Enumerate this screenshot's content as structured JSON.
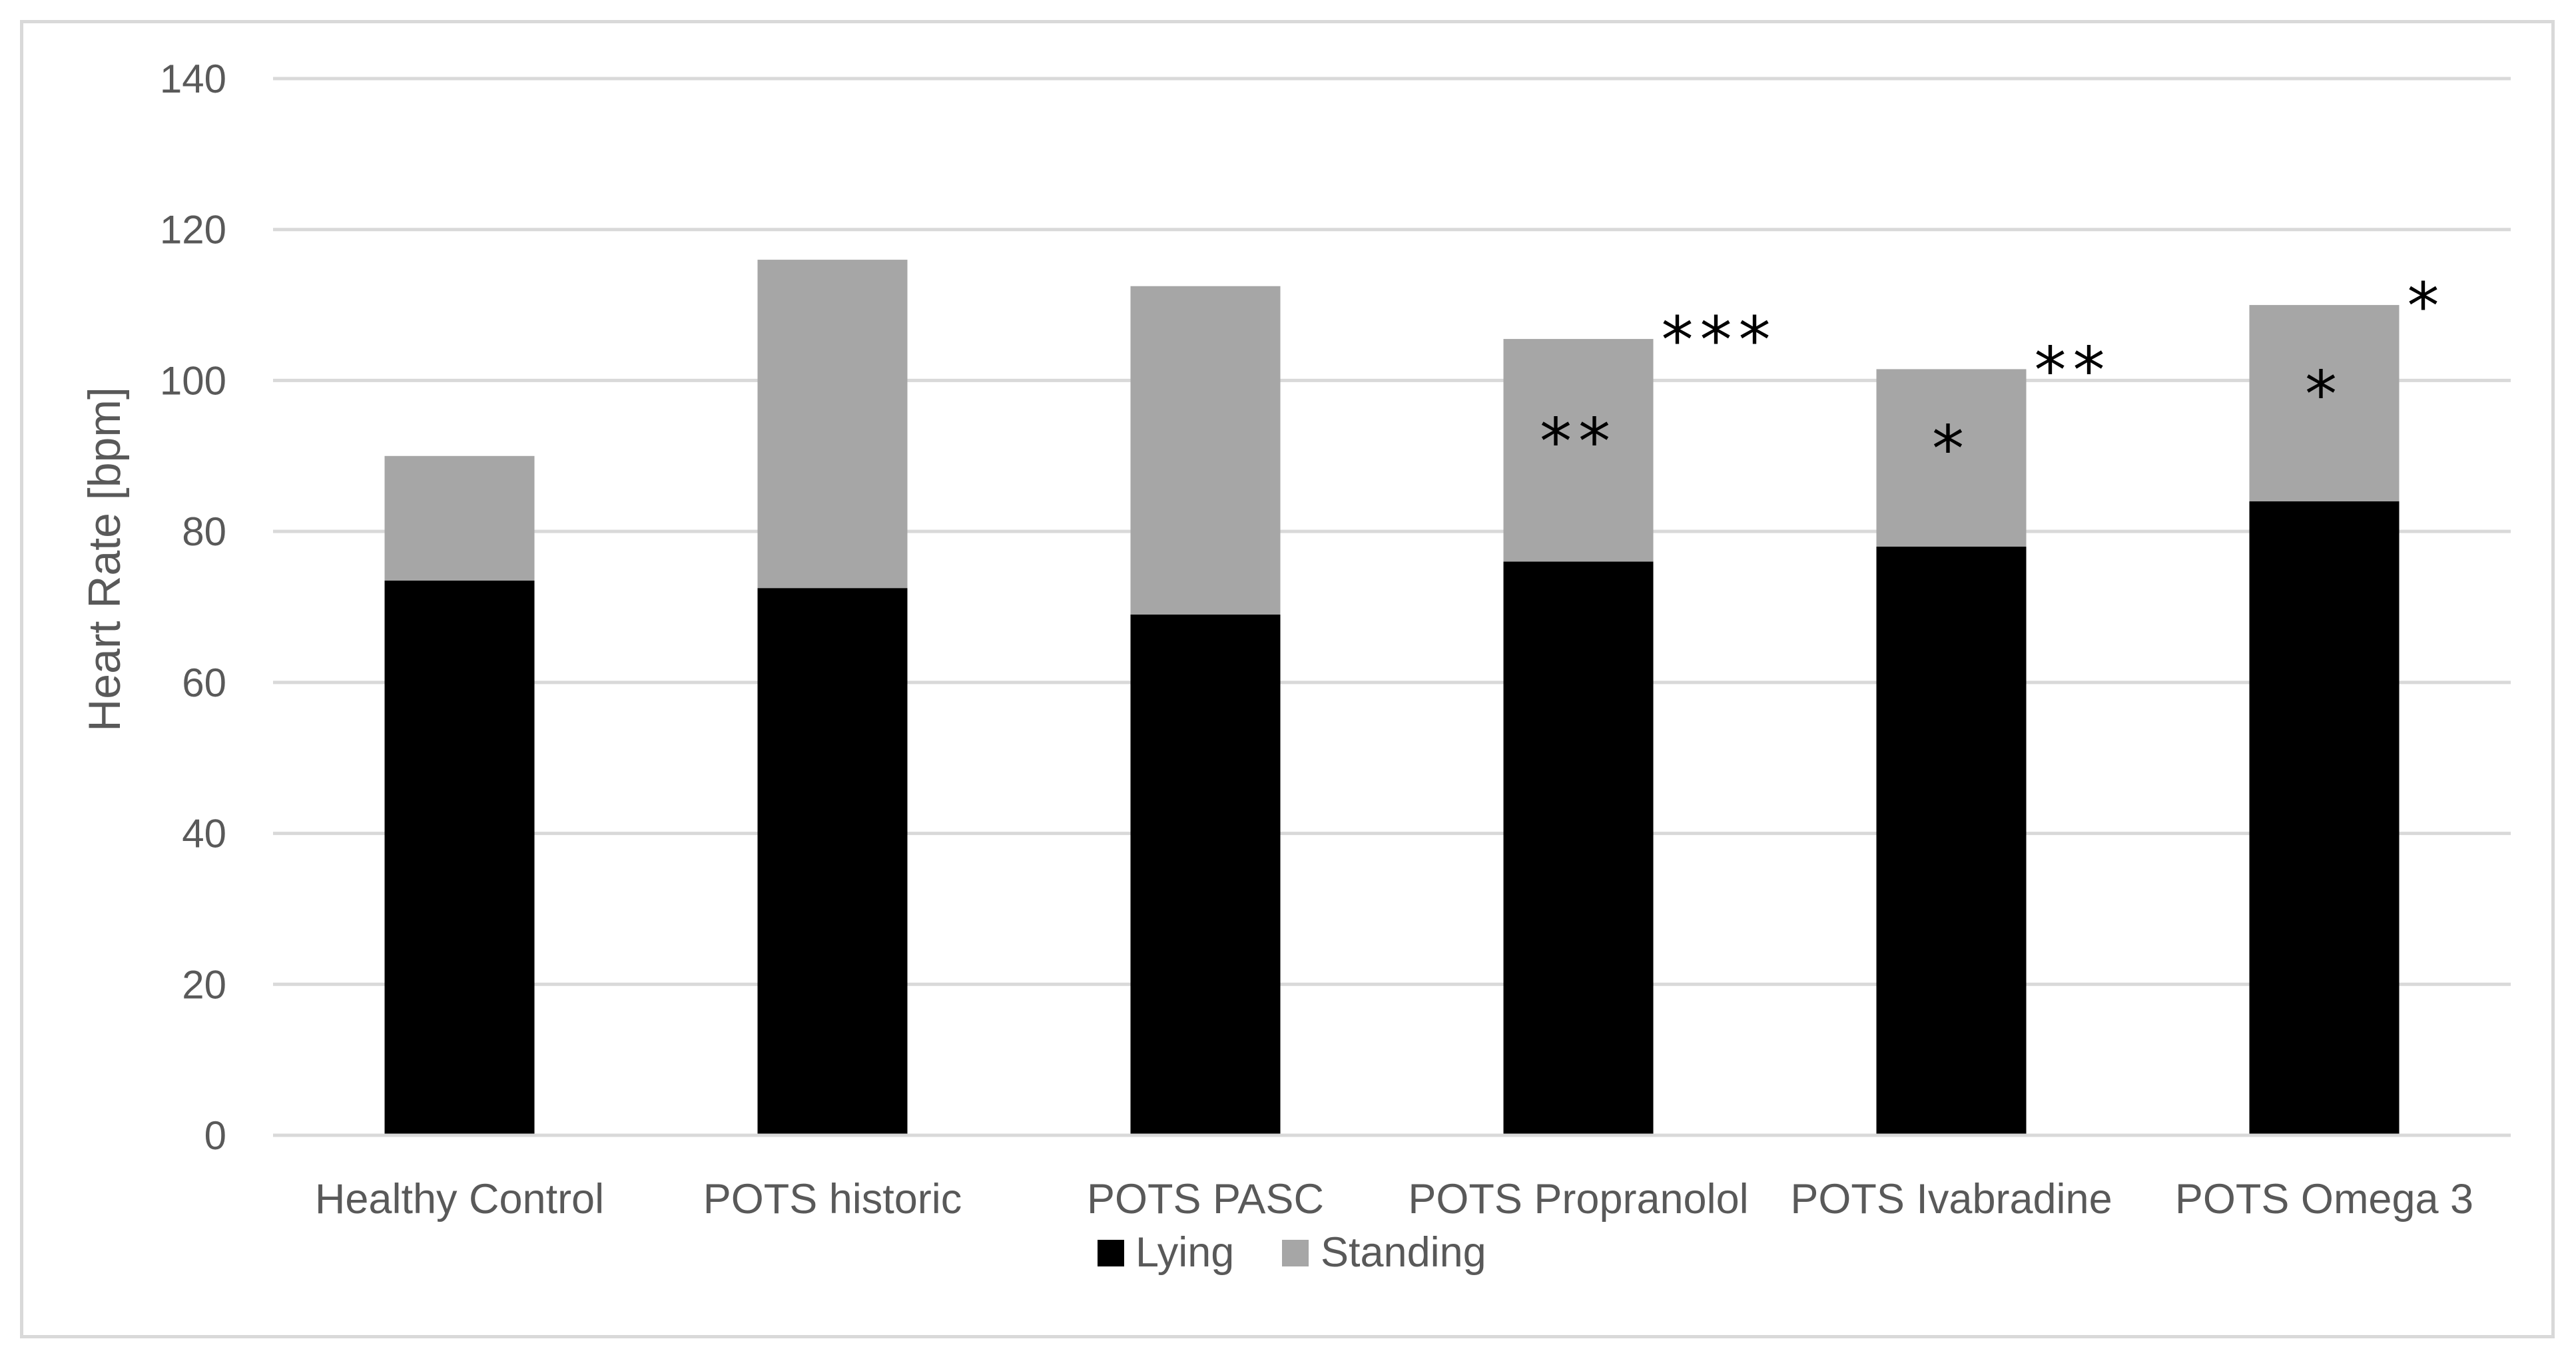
{
  "chart_data": {
    "type": "bar",
    "stacked": true,
    "ylabel": "Heart Rate [bpm]",
    "ylim": [
      0,
      140
    ],
    "yticks": [
      0,
      20,
      40,
      60,
      80,
      100,
      120,
      140
    ],
    "grid": true,
    "legend_position": "bottom",
    "categories": [
      "Healthy Control",
      "POTS historic",
      "POTS PASC",
      "POTS Propranolol",
      "POTS Ivabradine",
      "POTS Omega 3"
    ],
    "series": [
      {
        "name": "Lying",
        "color": "#000000",
        "values": [
          73.5,
          72.5,
          69,
          76,
          78,
          84
        ]
      },
      {
        "name": "Standing",
        "color": "#a6a6a6",
        "values": [
          16.5,
          43.5,
          43.5,
          29.5,
          23.5,
          26
        ]
      }
    ],
    "annotations": [
      {
        "category": "POTS Propranolol",
        "anchor": "inside-standing",
        "text": "**"
      },
      {
        "category": "POTS Propranolol",
        "anchor": "right-top",
        "text": "***"
      },
      {
        "category": "POTS Ivabradine",
        "anchor": "inside-standing",
        "text": "*"
      },
      {
        "category": "POTS Ivabradine",
        "anchor": "right-top",
        "text": "**"
      },
      {
        "category": "POTS Omega 3",
        "anchor": "inside-standing",
        "text": "*"
      },
      {
        "category": "POTS Omega 3",
        "anchor": "right-top",
        "text": "*"
      }
    ]
  }
}
